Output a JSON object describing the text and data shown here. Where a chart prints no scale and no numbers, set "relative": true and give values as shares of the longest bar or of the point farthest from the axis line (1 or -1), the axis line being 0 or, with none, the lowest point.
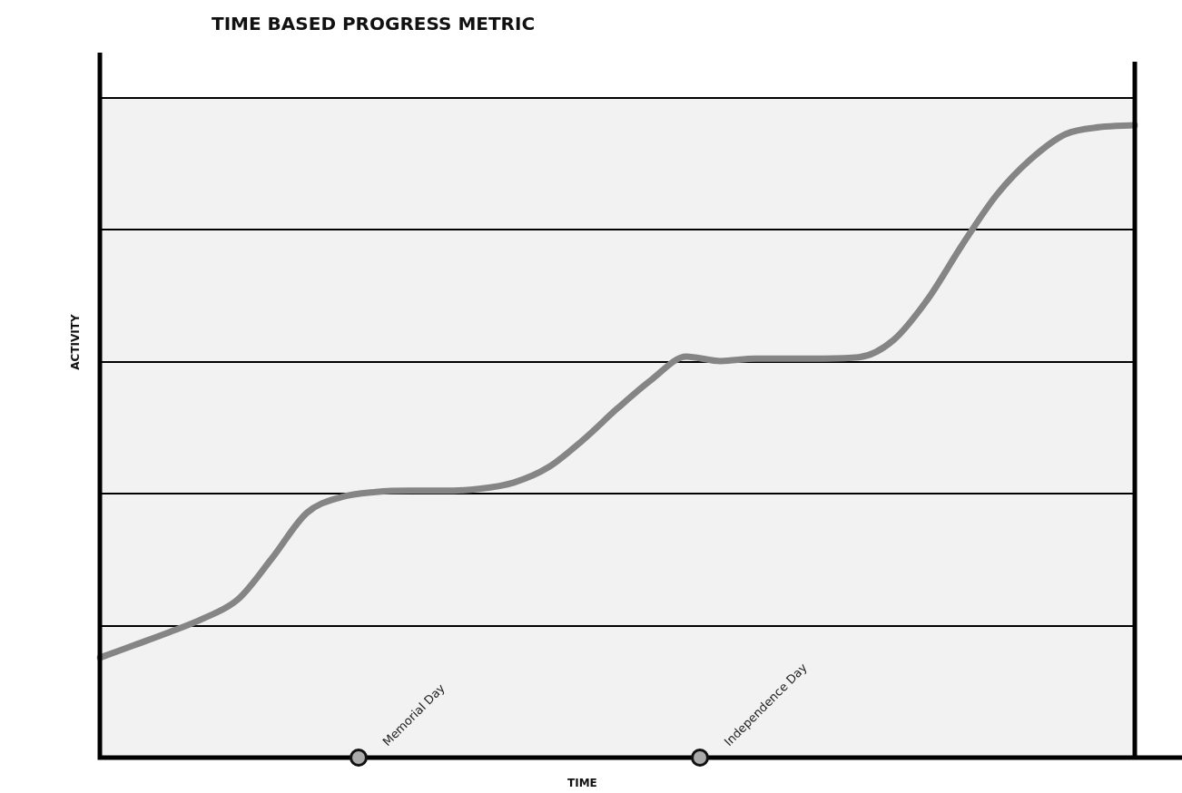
{
  "chart_data": {
    "type": "line",
    "title": "TIME BASED PROGRESS METRIC",
    "xlabel": "TIME",
    "ylabel": "ACTIVITY",
    "relative": true,
    "color": "#858585",
    "grid": "y",
    "marker": "none",
    "line_style": "solid",
    "legend": false,
    "categories": [
      null,
      null,
      null,
      null,
      null,
      null,
      null,
      null,
      null,
      null,
      null,
      null,
      null,
      null,
      null,
      null,
      null,
      null,
      null,
      null,
      null,
      null,
      null,
      null,
      null,
      null,
      null,
      null,
      null,
      null,
      null
    ],
    "values": [
      0.158,
      0.178,
      0.198,
      0.22,
      0.25,
      0.316,
      0.387,
      0.412,
      0.42,
      0.422,
      0.422,
      0.425,
      0.435,
      0.459,
      0.502,
      0.552,
      0.598,
      0.634,
      0.627,
      0.631,
      0.631,
      0.631,
      0.633,
      0.66,
      0.725,
      0.811,
      0.89,
      0.947,
      0.986,
      0.997,
      1.0
    ],
    "annotations": [
      "Memorial Day",
      "Independence Day"
    ]
  }
}
